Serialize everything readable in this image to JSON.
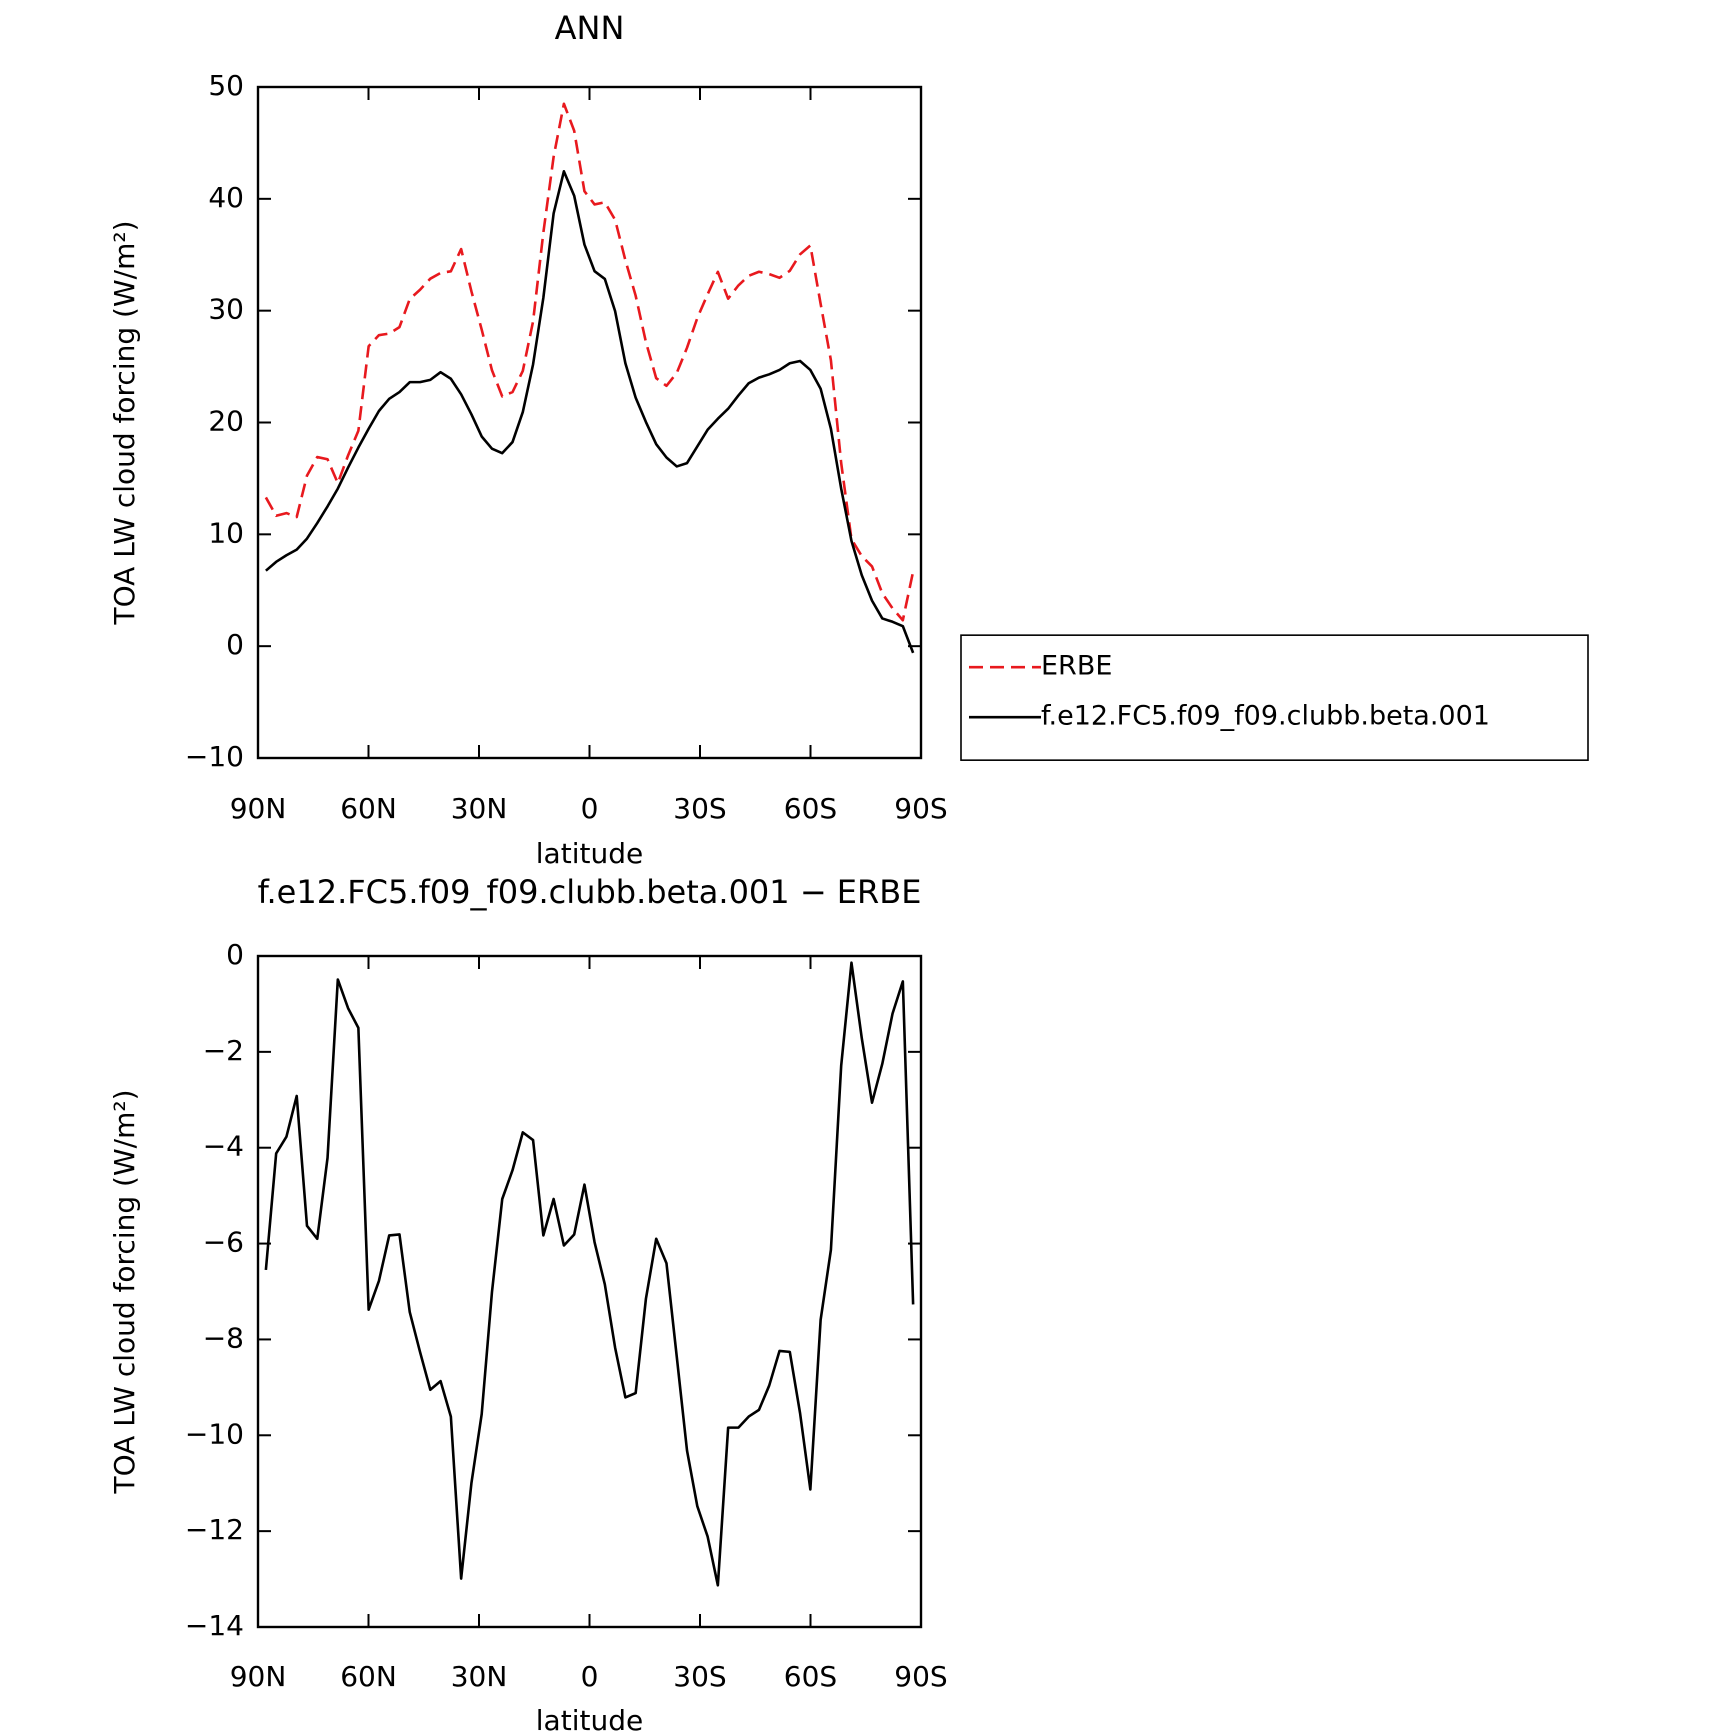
{
  "chart_data": [
    {
      "type": "line",
      "title": "ANN",
      "x_label": "latitude",
      "y_label": "TOA LW cloud forcing (W/m²)",
      "x": [
        87.86,
        85.07,
        82.28,
        79.49,
        76.7,
        73.91,
        71.12,
        68.33,
        65.54,
        62.75,
        59.96,
        57.17,
        54.38,
        51.59,
        48.8,
        46.01,
        43.22,
        40.43,
        37.64,
        34.85,
        32.06,
        29.27,
        26.48,
        23.69,
        20.9,
        18.11,
        15.32,
        12.53,
        9.74,
        6.95,
        4.16,
        1.37,
        -1.37,
        -4.16,
        -6.95,
        -9.74,
        -12.53,
        -15.32,
        -18.11,
        -20.9,
        -23.69,
        -26.48,
        -29.27,
        -32.06,
        -34.85,
        -37.64,
        -40.43,
        -43.22,
        -46.01,
        -48.8,
        -51.59,
        -54.38,
        -57.17,
        -59.96,
        -62.75,
        -65.54,
        -68.33,
        -71.12,
        -73.91,
        -76.7,
        -79.49,
        -82.28,
        -85.07,
        -87.86
      ],
      "series": [
        {
          "name": "ERBE",
          "color": "#e8191e",
          "dashed": true,
          "values": [
            13.3,
            11.66,
            11.9,
            11.55,
            15.25,
            16.91,
            16.71,
            14.58,
            17.06,
            19.26,
            26.82,
            27.81,
            27.95,
            28.53,
            31.04,
            31.87,
            32.86,
            33.37,
            33.52,
            35.51,
            31.73,
            28.31,
            24.67,
            22.33,
            22.72,
            24.61,
            29.04,
            36.98,
            43.76,
            48.5,
            46.09,
            40.68,
            39.5,
            39.69,
            38.13,
            34.51,
            31.34,
            27.19,
            23.96,
            23.28,
            24.43,
            26.69,
            29.34,
            31.46,
            33.47,
            31.07,
            32.26,
            33.12,
            33.48,
            33.27,
            32.94,
            33.56,
            35.04,
            35.83,
            30.61,
            25.57,
            16.38,
            9.56,
            8.06,
            7.13,
            4.73,
            3.38,
            2.32,
            6.67
          ]
        },
        {
          "name": "f.e12.FC5.f09_f09.clubb.beta.001",
          "color": "#000000",
          "dashed": false,
          "values": [
            6.75,
            7.54,
            8.13,
            8.63,
            9.62,
            11.01,
            12.5,
            14.09,
            15.97,
            17.76,
            19.44,
            21.03,
            22.12,
            22.72,
            23.61,
            23.61,
            23.81,
            24.5,
            23.91,
            22.52,
            20.73,
            18.75,
            17.66,
            17.26,
            18.25,
            20.93,
            25.2,
            31.15,
            38.69,
            42.46,
            40.28,
            35.91,
            33.53,
            32.84,
            29.96,
            25.3,
            22.22,
            20.04,
            18.06,
            16.87,
            16.07,
            16.37,
            17.86,
            19.35,
            20.34,
            21.23,
            22.42,
            23.51,
            24.01,
            24.31,
            24.7,
            25.3,
            25.5,
            24.7,
            23.02,
            19.44,
            14.09,
            9.42,
            6.35,
            4.07,
            2.48,
            2.18,
            1.79,
            -0.6
          ]
        }
      ],
      "xlim": [
        90,
        -90
      ],
      "xticks": [
        {
          "value": 90,
          "label": "90N"
        },
        {
          "value": 60,
          "label": "60N"
        },
        {
          "value": 30,
          "label": "30N"
        },
        0,
        {
          "value": -30,
          "label": "30S"
        },
        {
          "value": -60,
          "label": "60S"
        },
        {
          "value": -90,
          "label": "90S"
        }
      ],
      "ylim": [
        -10,
        50
      ],
      "yticks": [
        {
          "value": -10,
          "label": "−10"
        },
        0,
        10,
        20,
        30,
        40,
        50
      ],
      "legend": "outside-right"
    },
    {
      "type": "line",
      "title": "f.e12.FC5.f09_f09.clubb.beta.001 − ERBE",
      "x_label": "latitude",
      "y_label": "TOA LW cloud forcing (W/m²)",
      "x": [
        87.86,
        85.07,
        82.28,
        79.49,
        76.7,
        73.91,
        71.12,
        68.33,
        65.54,
        62.75,
        59.96,
        57.17,
        54.38,
        51.59,
        48.8,
        46.01,
        43.22,
        40.43,
        37.64,
        34.85,
        32.06,
        29.27,
        26.48,
        23.69,
        20.9,
        18.11,
        15.32,
        12.53,
        9.74,
        6.95,
        4.16,
        1.37,
        -1.37,
        -4.16,
        -6.95,
        -9.74,
        -12.53,
        -15.32,
        -18.11,
        -20.9,
        -23.69,
        -26.48,
        -29.27,
        -32.06,
        -34.85,
        -37.64,
        -40.43,
        -43.22,
        -46.01,
        -48.8,
        -51.59,
        -54.38,
        -57.17,
        -59.96,
        -62.75,
        -65.54,
        -68.33,
        -71.12,
        -73.91,
        -76.7,
        -79.49,
        -82.28,
        -85.07,
        -87.86
      ],
      "values": [
        -6.55,
        -4.12,
        -3.77,
        -2.92,
        -5.63,
        -5.9,
        -4.21,
        -0.49,
        -1.09,
        -1.5,
        -7.38,
        -6.78,
        -5.83,
        -5.81,
        -7.43,
        -8.26,
        -9.05,
        -8.87,
        -9.61,
        -12.99,
        -11.0,
        -9.56,
        -7.01,
        -5.07,
        -4.47,
        -3.68,
        -3.84,
        -5.83,
        -5.07,
        -6.04,
        -5.81,
        -4.77,
        -5.97,
        -6.85,
        -8.17,
        -9.21,
        -9.12,
        -7.15,
        -5.9,
        -6.41,
        -8.36,
        -10.32,
        -11.48,
        -12.11,
        -13.13,
        -9.84,
        -9.84,
        -9.61,
        -9.47,
        -8.96,
        -8.24,
        -8.26,
        -9.54,
        -11.13,
        -7.59,
        -6.13,
        -2.29,
        -0.14,
        -1.71,
        -3.06,
        -2.25,
        -1.2,
        -0.53,
        -7.27
      ],
      "color": "#000000",
      "xlim": [
        90,
        -90
      ],
      "xticks": [
        {
          "value": 90,
          "label": "90N"
        },
        {
          "value": 60,
          "label": "60N"
        },
        {
          "value": 30,
          "label": "30N"
        },
        0,
        {
          "value": -30,
          "label": "30S"
        },
        {
          "value": -60,
          "label": "60S"
        },
        {
          "value": -90,
          "label": "90S"
        }
      ],
      "ylim": [
        -14,
        0
      ],
      "yticks": [
        {
          "value": -14,
          "label": "−14"
        },
        {
          "value": -12,
          "label": "−12"
        },
        {
          "value": -10,
          "label": "−10"
        },
        {
          "value": -8,
          "label": "−8"
        },
        {
          "value": -6,
          "label": "−6"
        },
        {
          "value": -4,
          "label": "−4"
        },
        {
          "value": -2,
          "label": "−2"
        },
        0
      ]
    }
  ]
}
